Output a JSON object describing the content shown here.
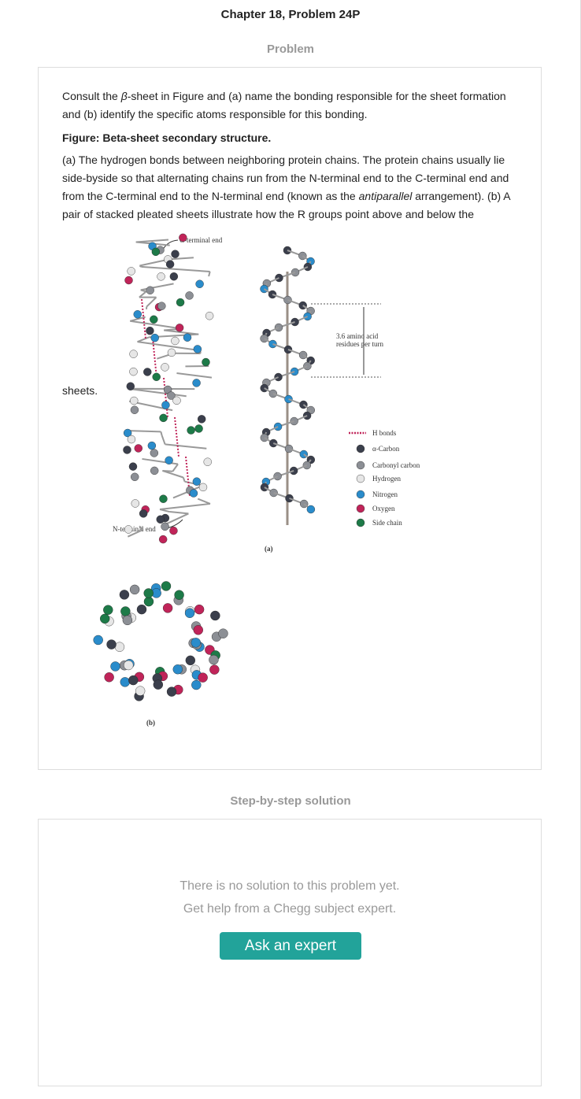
{
  "header": {
    "title": "Chapter 18, Problem 24P",
    "section": "Problem"
  },
  "problem": {
    "question": [
      "Consult the ",
      "β",
      "-sheet in Figure and (a) name the bonding responsible for the sheet formation and (b) identify the specific atoms responsible for this bonding."
    ],
    "figure_caption": "Figure: Beta-sheet secondary structure.",
    "answer": [
      "(a) The hydrogen bonds between neighboring protein chains. The protein chains usually lie side-byside so that alternating chains run from the N-terminal end to the C-terminal end and from the C-terminal end to the N-terminal end (known as the ",
      "antiparallel",
      " arrangement). (b) A pair of stacked pleated sheets illustrate how the R groups point above and below the"
    ],
    "continuation": "sheets.",
    "figure": {
      "c_terminal": "C-terminal end",
      "n_terminal": "N-terminal end",
      "turn_label": [
        "3.6 amino acid",
        "residues per turn"
      ],
      "legend": [
        "H bonds",
        "α-Carbon",
        "Carbonyl carbon",
        "Hydrogen",
        "Nitrogen",
        "Oxygen",
        "Side chain"
      ],
      "panel_a": "(a)",
      "panel_b": "(b)"
    }
  },
  "solution": {
    "heading": "Step-by-step solution",
    "message": [
      "There is no solution to this problem yet.",
      "Get help from a Chegg subject expert."
    ],
    "button": "Ask an expert"
  }
}
